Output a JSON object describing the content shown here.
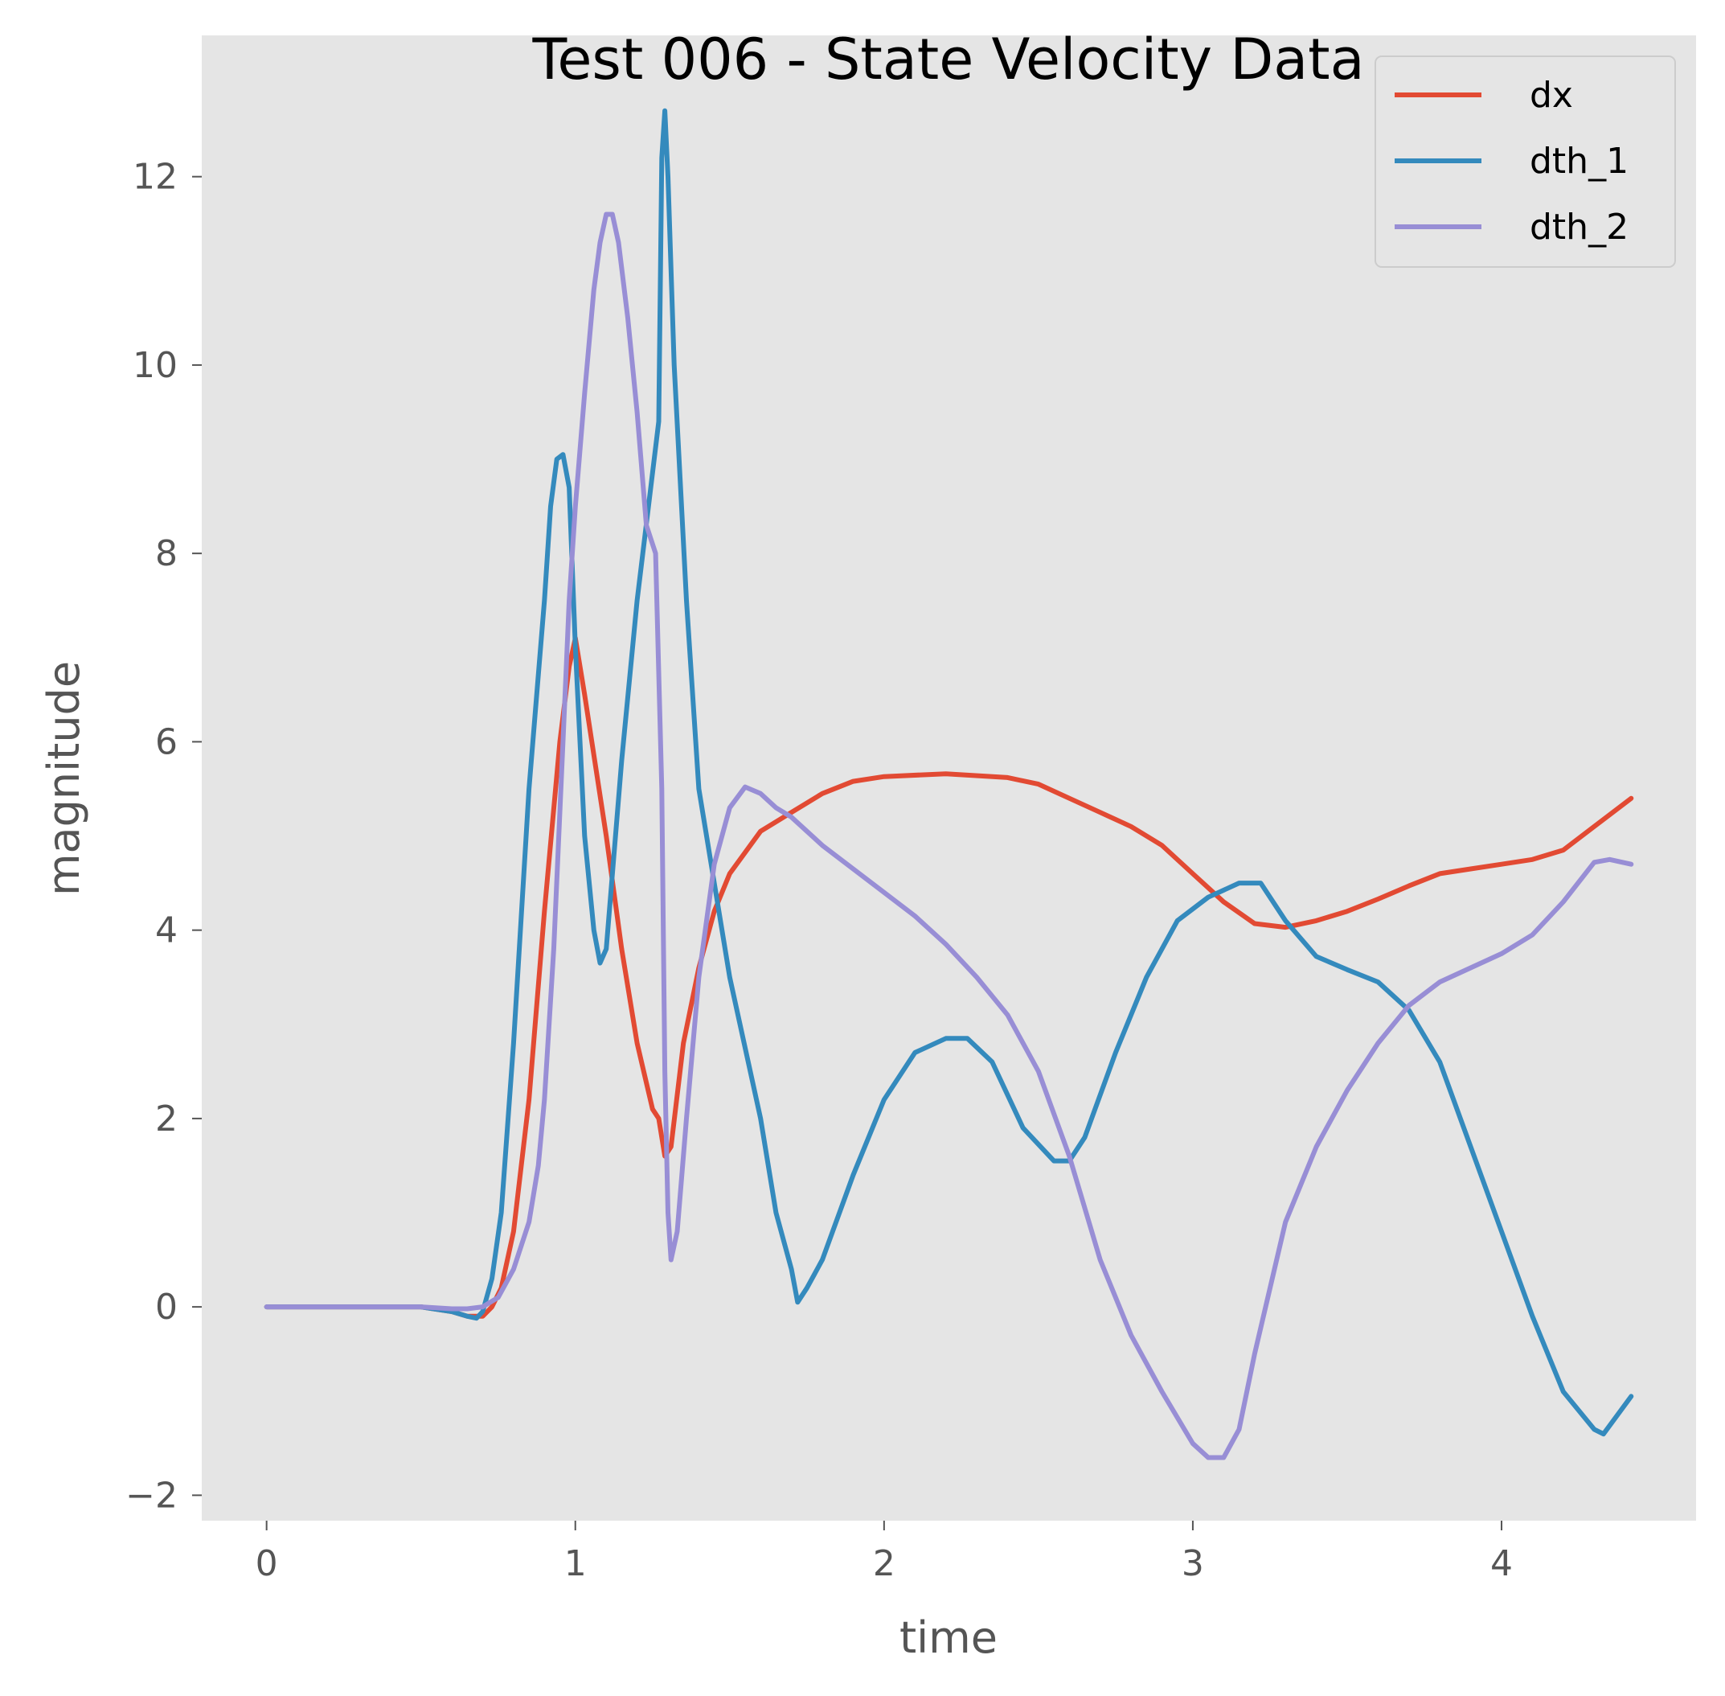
{
  "chart_data": {
    "type": "line",
    "title": "Test 006 - State Velocity Data",
    "xlabel": "time",
    "ylabel": "magnitude",
    "xlim": [
      -0.21,
      4.63
    ],
    "ylim": [
      -2.27,
      13.5
    ],
    "xticks": [
      0,
      1,
      2,
      3,
      4
    ],
    "yticks": [
      -2,
      0,
      2,
      4,
      6,
      8,
      10,
      12
    ],
    "xtick_labels": [
      "0",
      "1",
      "2",
      "3",
      "4"
    ],
    "ytick_labels": [
      "−2",
      "0",
      "2",
      "4",
      "6",
      "8",
      "10",
      "12"
    ],
    "grid": false,
    "legend_position": "top-right",
    "background": "#e5e5e5",
    "series": [
      {
        "name": "dx",
        "color": "#e24a33",
        "x": [
          0,
          0.5,
          0.6,
          0.65,
          0.7,
          0.73,
          0.76,
          0.8,
          0.85,
          0.9,
          0.95,
          0.98,
          1.0,
          1.03,
          1.1,
          1.15,
          1.2,
          1.25,
          1.27,
          1.29,
          1.31,
          1.35,
          1.4,
          1.45,
          1.5,
          1.6,
          1.7,
          1.8,
          1.9,
          2.0,
          2.2,
          2.4,
          2.5,
          2.6,
          2.7,
          2.8,
          2.9,
          3.0,
          3.1,
          3.2,
          3.3,
          3.4,
          3.5,
          3.6,
          3.7,
          3.8,
          3.9,
          4.0,
          4.1,
          4.2,
          4.3,
          4.42
        ],
        "y": [
          0,
          0,
          -0.05,
          -0.1,
          -0.1,
          0.0,
          0.2,
          0.8,
          2.2,
          4.2,
          6.0,
          6.8,
          7.1,
          6.5,
          5.0,
          3.8,
          2.8,
          2.1,
          2.0,
          1.6,
          1.7,
          2.8,
          3.6,
          4.2,
          4.6,
          5.05,
          5.25,
          5.45,
          5.58,
          5.63,
          5.66,
          5.62,
          5.55,
          5.4,
          5.25,
          5.1,
          4.9,
          4.6,
          4.3,
          4.07,
          4.03,
          4.1,
          4.2,
          4.33,
          4.47,
          4.6,
          4.65,
          4.7,
          4.75,
          4.85,
          5.1,
          5.4
        ]
      },
      {
        "name": "dth_1",
        "color": "#348abd",
        "x": [
          0,
          0.5,
          0.6,
          0.65,
          0.68,
          0.7,
          0.73,
          0.76,
          0.8,
          0.85,
          0.9,
          0.92,
          0.94,
          0.96,
          0.98,
          1.0,
          1.03,
          1.06,
          1.08,
          1.1,
          1.15,
          1.2,
          1.27,
          1.28,
          1.29,
          1.3,
          1.32,
          1.36,
          1.4,
          1.5,
          1.6,
          1.65,
          1.7,
          1.72,
          1.75,
          1.8,
          1.9,
          2.0,
          2.1,
          2.2,
          2.27,
          2.35,
          2.45,
          2.55,
          2.6,
          2.65,
          2.75,
          2.85,
          2.95,
          3.05,
          3.15,
          3.22,
          3.3,
          3.4,
          3.5,
          3.6,
          3.7,
          3.8,
          3.9,
          4.0,
          4.1,
          4.2,
          4.3,
          4.33,
          4.42
        ],
        "y": [
          0,
          0,
          -0.05,
          -0.1,
          -0.12,
          -0.05,
          0.3,
          1.0,
          2.8,
          5.5,
          7.5,
          8.5,
          9.0,
          9.05,
          8.7,
          7.0,
          5.0,
          4.0,
          3.65,
          3.8,
          5.8,
          7.5,
          9.4,
          12.2,
          12.7,
          12.0,
          10.0,
          7.5,
          5.5,
          3.5,
          2.0,
          1.0,
          0.4,
          0.05,
          0.2,
          0.5,
          1.4,
          2.2,
          2.7,
          2.85,
          2.85,
          2.6,
          1.9,
          1.55,
          1.55,
          1.8,
          2.7,
          3.5,
          4.1,
          4.35,
          4.5,
          4.5,
          4.1,
          3.72,
          3.58,
          3.45,
          3.15,
          2.6,
          1.7,
          0.8,
          -0.1,
          -0.9,
          -1.3,
          -1.35,
          -0.95
        ]
      },
      {
        "name": "dth_2",
        "color": "#988ed5",
        "x": [
          0,
          0.5,
          0.6,
          0.65,
          0.7,
          0.75,
          0.8,
          0.85,
          0.88,
          0.9,
          0.93,
          0.96,
          0.98,
          1.0,
          1.03,
          1.06,
          1.08,
          1.1,
          1.12,
          1.14,
          1.17,
          1.2,
          1.23,
          1.26,
          1.28,
          1.29,
          1.3,
          1.31,
          1.33,
          1.36,
          1.4,
          1.45,
          1.5,
          1.55,
          1.6,
          1.65,
          1.7,
          1.8,
          1.9,
          2.0,
          2.1,
          2.2,
          2.3,
          2.4,
          2.5,
          2.6,
          2.7,
          2.8,
          2.9,
          3.0,
          3.05,
          3.1,
          3.15,
          3.2,
          3.3,
          3.4,
          3.5,
          3.6,
          3.7,
          3.8,
          3.9,
          4.0,
          4.1,
          4.2,
          4.3,
          4.35,
          4.42
        ],
        "y": [
          0,
          0,
          -0.02,
          -0.02,
          0.0,
          0.1,
          0.4,
          0.9,
          1.5,
          2.2,
          3.8,
          6.0,
          7.5,
          8.5,
          9.7,
          10.8,
          11.3,
          11.6,
          11.6,
          11.3,
          10.5,
          9.5,
          8.3,
          8.0,
          5.5,
          2.5,
          1.0,
          0.5,
          0.8,
          2.0,
          3.5,
          4.7,
          5.3,
          5.52,
          5.45,
          5.3,
          5.2,
          4.9,
          4.65,
          4.4,
          4.15,
          3.85,
          3.5,
          3.1,
          2.5,
          1.6,
          0.5,
          -0.3,
          -0.9,
          -1.45,
          -1.6,
          -1.6,
          -1.3,
          -0.5,
          0.9,
          1.7,
          2.3,
          2.8,
          3.2,
          3.45,
          3.6,
          3.75,
          3.95,
          4.3,
          4.72,
          4.75,
          4.7
        ]
      }
    ]
  }
}
